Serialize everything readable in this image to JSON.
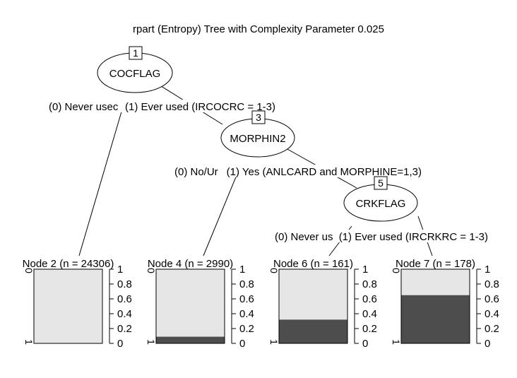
{
  "title": "rpart (Entropy) Tree with Complexity Parameter 0.025",
  "colors": {
    "class0_fill": "#e6e6e6",
    "class1_fill": "#4d4d4d",
    "line": "#000000"
  },
  "inner_nodes": [
    {
      "id": "1",
      "variable": "COCFLAG",
      "left_label": "(0) Never usec",
      "right_label": "(1) Ever used (IRCOCRC = 1-3)"
    },
    {
      "id": "3",
      "variable": "MORPHIN2",
      "left_label": "(0) No/Ur",
      "right_label": "(1) Yes (ANLCARD and MORPHINE=1,3)"
    },
    {
      "id": "5",
      "variable": "CRKFLAG",
      "left_label": "(0) Never us",
      "right_label": "(1) Ever used (IRCRKRC = 1-3)"
    }
  ],
  "terminal_nodes": [
    {
      "id": "2",
      "label": "Node 2 (n = 24306)",
      "class1_fraction": 0.0
    },
    {
      "id": "4",
      "label": "Node 4 (n = 2990)",
      "class1_fraction": 0.09
    },
    {
      "id": "6",
      "label": "Node 6 (n = 161)",
      "class1_fraction": 0.32
    },
    {
      "id": "7",
      "label": "Node 7 (n = 178)",
      "class1_fraction": 0.65
    }
  ],
  "bar_axis": {
    "ticks": [
      "0",
      "0.2",
      "0.4",
      "0.6",
      "0.8",
      "1"
    ],
    "tick_values": [
      0,
      0.2,
      0.4,
      0.6,
      0.8,
      1
    ]
  },
  "class_axis": {
    "top": "0",
    "bottom": "1"
  }
}
